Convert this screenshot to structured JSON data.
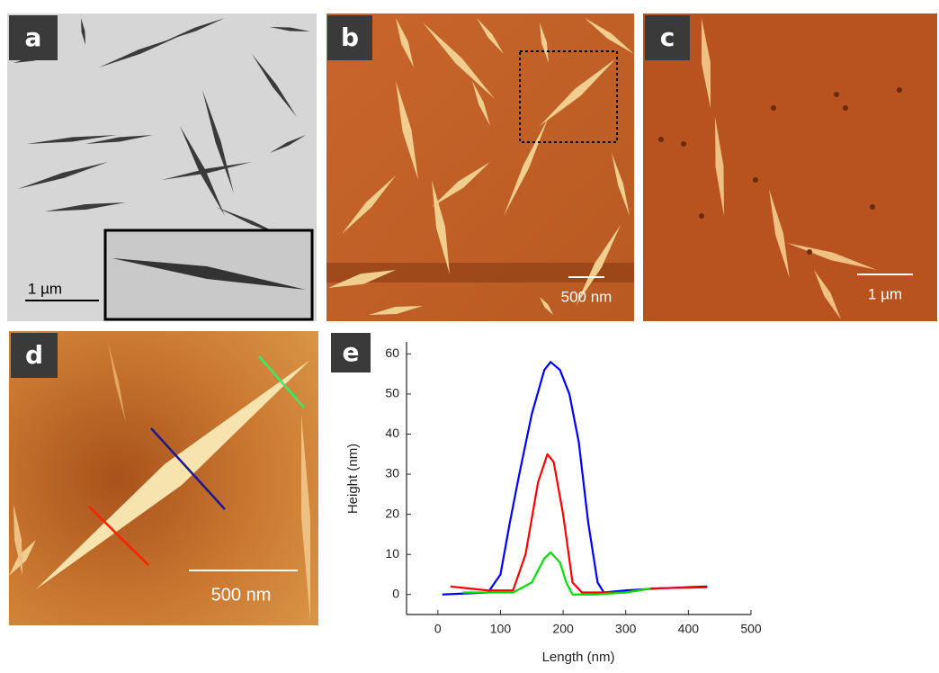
{
  "panels": {
    "a": {
      "label": "a",
      "scale_bar": "1 µm"
    },
    "b": {
      "label": "b",
      "scale_bar": "500 nm"
    },
    "c": {
      "label": "c",
      "scale_bar": "1 µm"
    },
    "d": {
      "label": "d",
      "scale_bar": "500 nm"
    },
    "e": {
      "label": "e"
    }
  },
  "chart_data": {
    "type": "line",
    "x_label": "Length (nm)",
    "y_label": "Height (nm)",
    "xlim": [
      -50,
      500
    ],
    "xticks": [
      0,
      100,
      200,
      300,
      400,
      500
    ],
    "ylim": [
      -5,
      63
    ],
    "yticks": [
      0,
      10,
      20,
      30,
      40,
      50,
      60
    ],
    "series": [
      {
        "name": "blue",
        "color": "#0000ff",
        "x": [
          7,
          80,
          100,
          115,
          130,
          150,
          170,
          180,
          195,
          210,
          225,
          240,
          255,
          265,
          300,
          350,
          430
        ],
        "values": [
          0,
          0.5,
          5,
          18,
          30,
          45,
          56,
          58,
          56,
          50,
          38,
          18,
          3,
          0.5,
          1,
          1.5,
          2
        ]
      },
      {
        "name": "red",
        "color": "#ff0000",
        "x": [
          20,
          80,
          120,
          140,
          160,
          175,
          185,
          200,
          215,
          230,
          300,
          340,
          430
        ],
        "values": [
          2,
          1,
          1,
          10,
          28,
          35,
          33,
          20,
          3,
          0.5,
          0.5,
          1.5,
          1.8
        ]
      },
      {
        "name": "green",
        "color": "#00e000",
        "x": [
          40,
          120,
          150,
          170,
          180,
          195,
          205,
          215,
          250,
          300,
          340
        ],
        "values": [
          0.5,
          0.5,
          3,
          9,
          10.5,
          8,
          3,
          0,
          0,
          0.5,
          1.5
        ]
      }
    ]
  }
}
